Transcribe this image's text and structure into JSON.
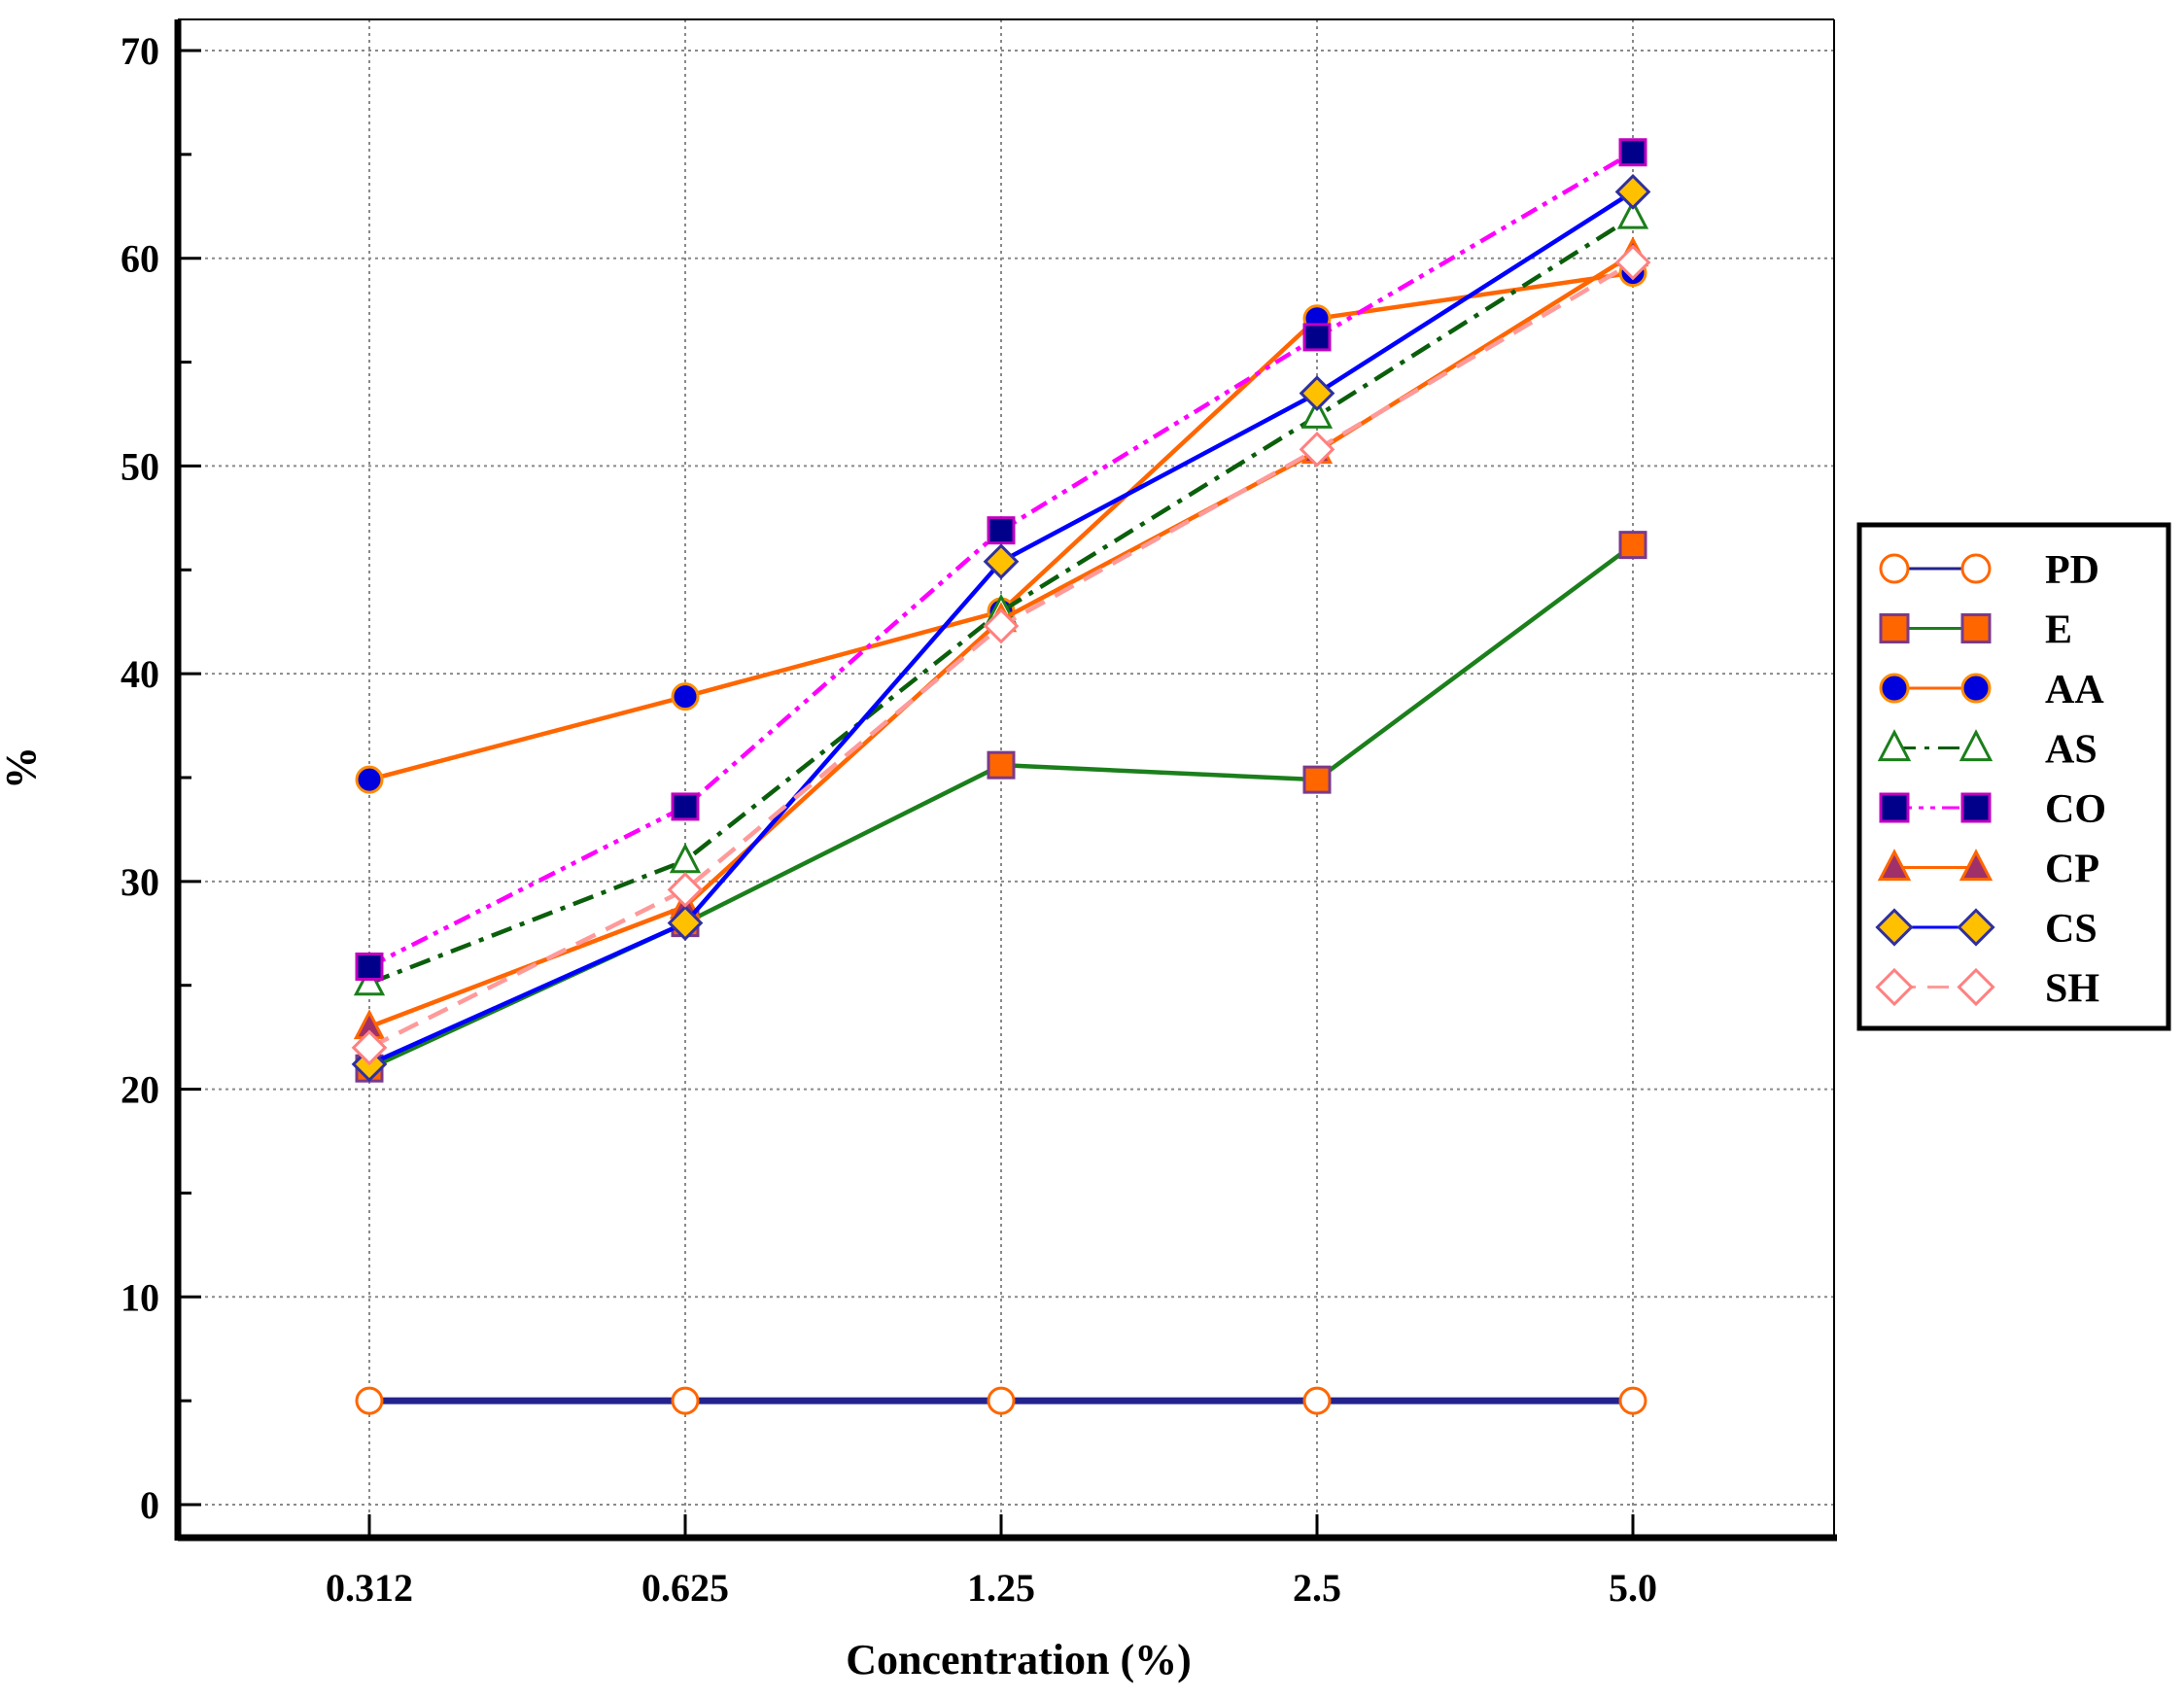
{
  "chart_data": {
    "type": "line",
    "xlabel": "Concentration (%)",
    "ylabel": "%",
    "categories": [
      "0.312",
      "0.625",
      "1.25",
      "2.5",
      "5.0"
    ],
    "ylim": [
      0,
      70
    ],
    "yticks": [
      "0",
      "10",
      "20",
      "30",
      "40",
      "50",
      "60",
      "70"
    ],
    "grid": true,
    "legend_position": "right",
    "series": [
      {
        "name": "PD",
        "values": [
          5,
          5,
          5,
          5,
          5
        ],
        "line_color": "#23238e",
        "line_style": "solid",
        "marker": "circle",
        "marker_fill": "#ffffff",
        "marker_stroke": "#ff6600"
      },
      {
        "name": "E",
        "values": [
          21,
          28,
          35.6,
          34.9,
          46.2
        ],
        "line_color": "#1b7f1b",
        "line_style": "solid",
        "marker": "square",
        "marker_fill": "#ff6600",
        "marker_stroke": "#7a3a8a"
      },
      {
        "name": "AA",
        "values": [
          34.9,
          38.9,
          43,
          57.1,
          59.3
        ],
        "line_color": "#ff6600",
        "line_style": "solid",
        "marker": "circle",
        "marker_fill": "#0000dd",
        "marker_stroke": "#ff8c00"
      },
      {
        "name": "AS",
        "values": [
          25.1,
          31,
          43,
          52.4,
          62
        ],
        "line_color": "#0b5e0b",
        "line_style": "dashdot",
        "marker": "triangle",
        "marker_fill": "#ffffff",
        "marker_stroke": "#1b7f1b"
      },
      {
        "name": "CO",
        "values": [
          25.9,
          33.6,
          46.9,
          56.2,
          65.1
        ],
        "line_color": "#ff00ff",
        "line_style": "dashdotdot",
        "marker": "square",
        "marker_fill": "#00008b",
        "marker_stroke": "#c000c0"
      },
      {
        "name": "CP",
        "values": [
          23,
          28.8,
          42.6,
          50.7,
          60.2
        ],
        "line_color": "#ff6600",
        "line_style": "solid",
        "marker": "triangle",
        "marker_fill": "#a0306a",
        "marker_stroke": "#ff6600"
      },
      {
        "name": "CS",
        "values": [
          21.2,
          28,
          45.4,
          53.5,
          63.2
        ],
        "line_color": "#0000ff",
        "line_style": "solid",
        "marker": "diamond",
        "marker_fill": "#ffc000",
        "marker_stroke": "#3030a0"
      },
      {
        "name": "SH",
        "values": [
          22,
          29.6,
          42.3,
          50.8,
          59.8
        ],
        "line_color": "#ff9a9a",
        "line_style": "dashed",
        "marker": "diamond",
        "marker_fill": "#ffffff",
        "marker_stroke": "#ff8080"
      }
    ]
  }
}
